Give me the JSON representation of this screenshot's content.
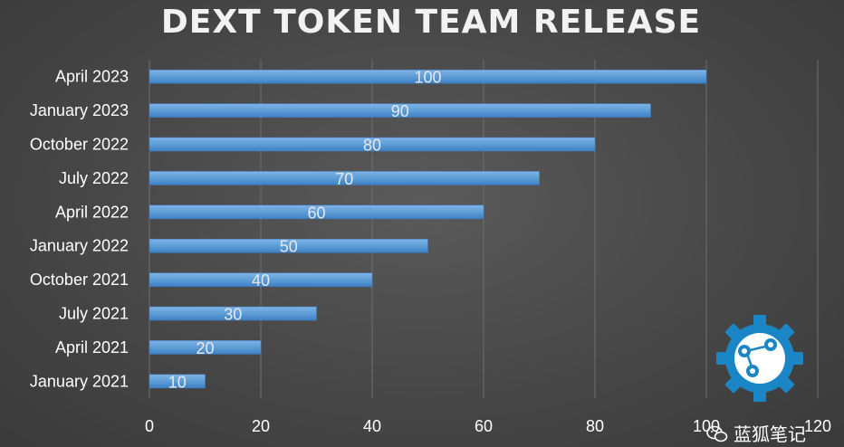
{
  "chart_data": {
    "type": "bar",
    "orientation": "horizontal",
    "title": "DEXT TOKEN TEAM RELEASE",
    "categories": [
      "January 2021",
      "April 2021",
      "July 2021",
      "October 2021",
      "January 2022",
      "April 2022",
      "July 2022",
      "October 2022",
      "January 2023",
      "April 2023"
    ],
    "values": [
      10,
      20,
      30,
      40,
      50,
      60,
      70,
      80,
      90,
      100
    ],
    "xlim": [
      0,
      120
    ],
    "xticks": [
      0,
      20,
      40,
      60,
      80,
      100,
      120
    ],
    "grid": true,
    "data_labels": true,
    "bar_color": "#5b9bd5"
  },
  "watermark": {
    "text": "蓝狐笔记",
    "icon": "gear-network-icon",
    "chat_icon": "wechat-icon"
  },
  "colors": {
    "background": "#474747",
    "bar": "#5b9bd5",
    "gear": "#1b86c6"
  }
}
